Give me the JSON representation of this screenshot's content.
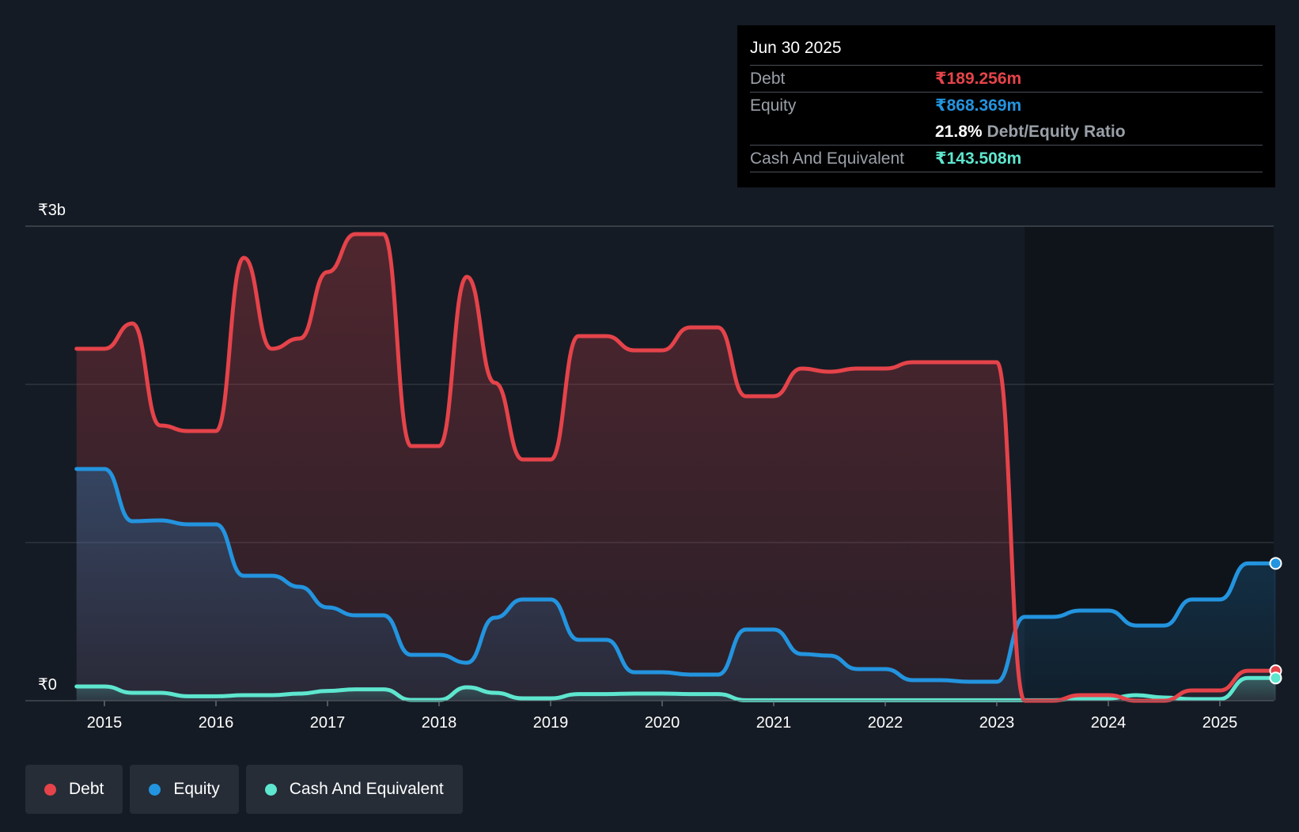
{
  "chart_data": {
    "type": "area",
    "title": "",
    "xlabel": "",
    "ylabel": "",
    "ylim": [
      0,
      3000
    ],
    "y_tick_labels": [
      {
        "value": 3000,
        "label": "₹3b"
      },
      {
        "value": 0,
        "label": "₹0"
      }
    ],
    "gridlines": [
      0,
      1000,
      2000,
      3000
    ],
    "x_ticks": [
      {
        "value": 2015,
        "label": "2015"
      },
      {
        "value": 2016,
        "label": "2016"
      },
      {
        "value": 2017,
        "label": "2017"
      },
      {
        "value": 2018,
        "label": "2018"
      },
      {
        "value": 2019,
        "label": "2019"
      },
      {
        "value": 2020,
        "label": "2020"
      },
      {
        "value": 2021,
        "label": "2021"
      },
      {
        "value": 2022,
        "label": "2022"
      },
      {
        "value": 2023,
        "label": "2023"
      },
      {
        "value": 2024,
        "label": "2024"
      },
      {
        "value": 2025,
        "label": "2025"
      }
    ],
    "xlim": [
      2014.3,
      2025.5
    ],
    "series": [
      {
        "name": "Debt",
        "color": "#e5434a",
        "points": [
          [
            2014.75,
            2225
          ],
          [
            2015.0,
            2225
          ],
          [
            2015.25,
            2385
          ],
          [
            2015.5,
            1740
          ],
          [
            2015.75,
            1705
          ],
          [
            2016.0,
            1705
          ],
          [
            2016.25,
            2800
          ],
          [
            2016.5,
            2225
          ],
          [
            2016.75,
            2290
          ],
          [
            2017.0,
            2710
          ],
          [
            2017.25,
            2950
          ],
          [
            2017.5,
            2950
          ],
          [
            2017.75,
            1610
          ],
          [
            2018.0,
            1610
          ],
          [
            2018.25,
            2680
          ],
          [
            2018.5,
            2010
          ],
          [
            2018.75,
            1525
          ],
          [
            2019.0,
            1525
          ],
          [
            2019.25,
            2305
          ],
          [
            2019.5,
            2305
          ],
          [
            2019.75,
            2215
          ],
          [
            2020.0,
            2215
          ],
          [
            2020.25,
            2360
          ],
          [
            2020.5,
            2360
          ],
          [
            2020.75,
            1925
          ],
          [
            2021.0,
            1925
          ],
          [
            2021.25,
            2100
          ],
          [
            2021.5,
            2080
          ],
          [
            2021.75,
            2100
          ],
          [
            2022.0,
            2100
          ],
          [
            2022.25,
            2140
          ],
          [
            2022.5,
            2140
          ],
          [
            2022.75,
            2140
          ],
          [
            2023.0,
            2140
          ],
          [
            2023.25,
            0
          ],
          [
            2023.5,
            0
          ],
          [
            2023.75,
            35
          ],
          [
            2024.0,
            35
          ],
          [
            2024.25,
            0
          ],
          [
            2024.5,
            0
          ],
          [
            2024.75,
            65
          ],
          [
            2025.0,
            65
          ],
          [
            2025.25,
            189.256
          ],
          [
            2025.5,
            189.256
          ]
        ]
      },
      {
        "name": "Equity",
        "color": "#2394df",
        "points": [
          [
            2014.75,
            1465
          ],
          [
            2015.0,
            1465
          ],
          [
            2015.25,
            1135
          ],
          [
            2015.5,
            1140
          ],
          [
            2015.75,
            1115
          ],
          [
            2016.0,
            1115
          ],
          [
            2016.25,
            790
          ],
          [
            2016.5,
            790
          ],
          [
            2016.75,
            720
          ],
          [
            2017.0,
            590
          ],
          [
            2017.25,
            540
          ],
          [
            2017.5,
            540
          ],
          [
            2017.75,
            290
          ],
          [
            2018.0,
            290
          ],
          [
            2018.25,
            240
          ],
          [
            2018.5,
            525
          ],
          [
            2018.75,
            640
          ],
          [
            2019.0,
            640
          ],
          [
            2019.25,
            385
          ],
          [
            2019.5,
            385
          ],
          [
            2019.75,
            180
          ],
          [
            2020.0,
            180
          ],
          [
            2020.25,
            165
          ],
          [
            2020.5,
            165
          ],
          [
            2020.75,
            450
          ],
          [
            2021.0,
            450
          ],
          [
            2021.25,
            295
          ],
          [
            2021.5,
            285
          ],
          [
            2021.75,
            200
          ],
          [
            2022.0,
            200
          ],
          [
            2022.25,
            130
          ],
          [
            2022.5,
            130
          ],
          [
            2022.75,
            120
          ],
          [
            2023.0,
            120
          ],
          [
            2023.25,
            530
          ],
          [
            2023.5,
            530
          ],
          [
            2023.75,
            570
          ],
          [
            2024.0,
            570
          ],
          [
            2024.25,
            475
          ],
          [
            2024.5,
            475
          ],
          [
            2024.75,
            640
          ],
          [
            2025.0,
            640
          ],
          [
            2025.25,
            868.369
          ],
          [
            2025.5,
            868.369
          ]
        ]
      },
      {
        "name": "Cash And Equivalent",
        "color": "#5ee6cf",
        "points": [
          [
            2014.75,
            90
          ],
          [
            2015.0,
            90
          ],
          [
            2015.25,
            50
          ],
          [
            2015.5,
            50
          ],
          [
            2015.75,
            28
          ],
          [
            2016.0,
            28
          ],
          [
            2016.25,
            35
          ],
          [
            2016.5,
            35
          ],
          [
            2016.75,
            45
          ],
          [
            2017.0,
            62
          ],
          [
            2017.25,
            72
          ],
          [
            2017.5,
            72
          ],
          [
            2017.75,
            5
          ],
          [
            2018.0,
            5
          ],
          [
            2018.25,
            85
          ],
          [
            2018.5,
            50
          ],
          [
            2018.75,
            15
          ],
          [
            2019.0,
            15
          ],
          [
            2019.25,
            42
          ],
          [
            2019.5,
            42
          ],
          [
            2019.75,
            45
          ],
          [
            2020.0,
            45
          ],
          [
            2020.25,
            42
          ],
          [
            2020.5,
            42
          ],
          [
            2020.75,
            3
          ],
          [
            2021.0,
            3
          ],
          [
            2021.25,
            3
          ],
          [
            2021.5,
            3
          ],
          [
            2021.75,
            3
          ],
          [
            2022.0,
            3
          ],
          [
            2022.25,
            3
          ],
          [
            2022.5,
            3
          ],
          [
            2022.75,
            3
          ],
          [
            2023.0,
            3
          ],
          [
            2023.25,
            3
          ],
          [
            2023.5,
            3
          ],
          [
            2023.75,
            15
          ],
          [
            2024.0,
            15
          ],
          [
            2024.25,
            35
          ],
          [
            2024.5,
            20
          ],
          [
            2024.75,
            10
          ],
          [
            2025.0,
            10
          ],
          [
            2025.25,
            143.508
          ],
          [
            2025.5,
            143.508
          ]
        ]
      }
    ],
    "tooltip": {
      "date": "Jun 30 2025",
      "rows": [
        {
          "key": "Debt",
          "value": "₹189.256m",
          "color": "#e5434a"
        },
        {
          "key": "Equity",
          "value": "₹868.369m",
          "color": "#2394df"
        },
        {
          "key": "",
          "ratio_value": "21.8%",
          "ratio_label": "Debt/Equity Ratio"
        },
        {
          "key": "Cash And Equivalent",
          "value": "₹143.508m",
          "color": "#5ee6cf"
        }
      ]
    },
    "legend": [
      {
        "label": "Debt",
        "color": "#e5434a"
      },
      {
        "label": "Equity",
        "color": "#2394df"
      },
      {
        "label": "Cash And Equivalent",
        "color": "#5ee6cf"
      }
    ],
    "legend_position": "bottom-left",
    "past_highlight_until": 2023.25
  }
}
